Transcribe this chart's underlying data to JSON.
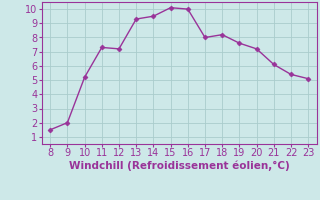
{
  "x": [
    8,
    9,
    10,
    11,
    12,
    13,
    14,
    15,
    16,
    17,
    18,
    19,
    20,
    21,
    22,
    23
  ],
  "y": [
    1.5,
    2.0,
    5.2,
    7.3,
    7.2,
    9.3,
    9.5,
    10.1,
    10.0,
    8.0,
    8.2,
    7.6,
    7.2,
    6.1,
    5.4,
    5.1
  ],
  "line_color": "#993399",
  "marker": "D",
  "marker_size": 2.5,
  "bg_color": "#cde8e8",
  "grid_color": "#aacccc",
  "xlabel": "Windchill (Refroidissement éolien,°C)",
  "xlabel_color": "#993399",
  "xlabel_fontsize": 7.5,
  "tick_color": "#993399",
  "tick_fontsize": 7,
  "xlim": [
    7.5,
    23.5
  ],
  "ylim": [
    0.5,
    10.5
  ],
  "xticks": [
    8,
    9,
    10,
    11,
    12,
    13,
    14,
    15,
    16,
    17,
    18,
    19,
    20,
    21,
    22,
    23
  ],
  "yticks": [
    1,
    2,
    3,
    4,
    5,
    6,
    7,
    8,
    9,
    10
  ]
}
